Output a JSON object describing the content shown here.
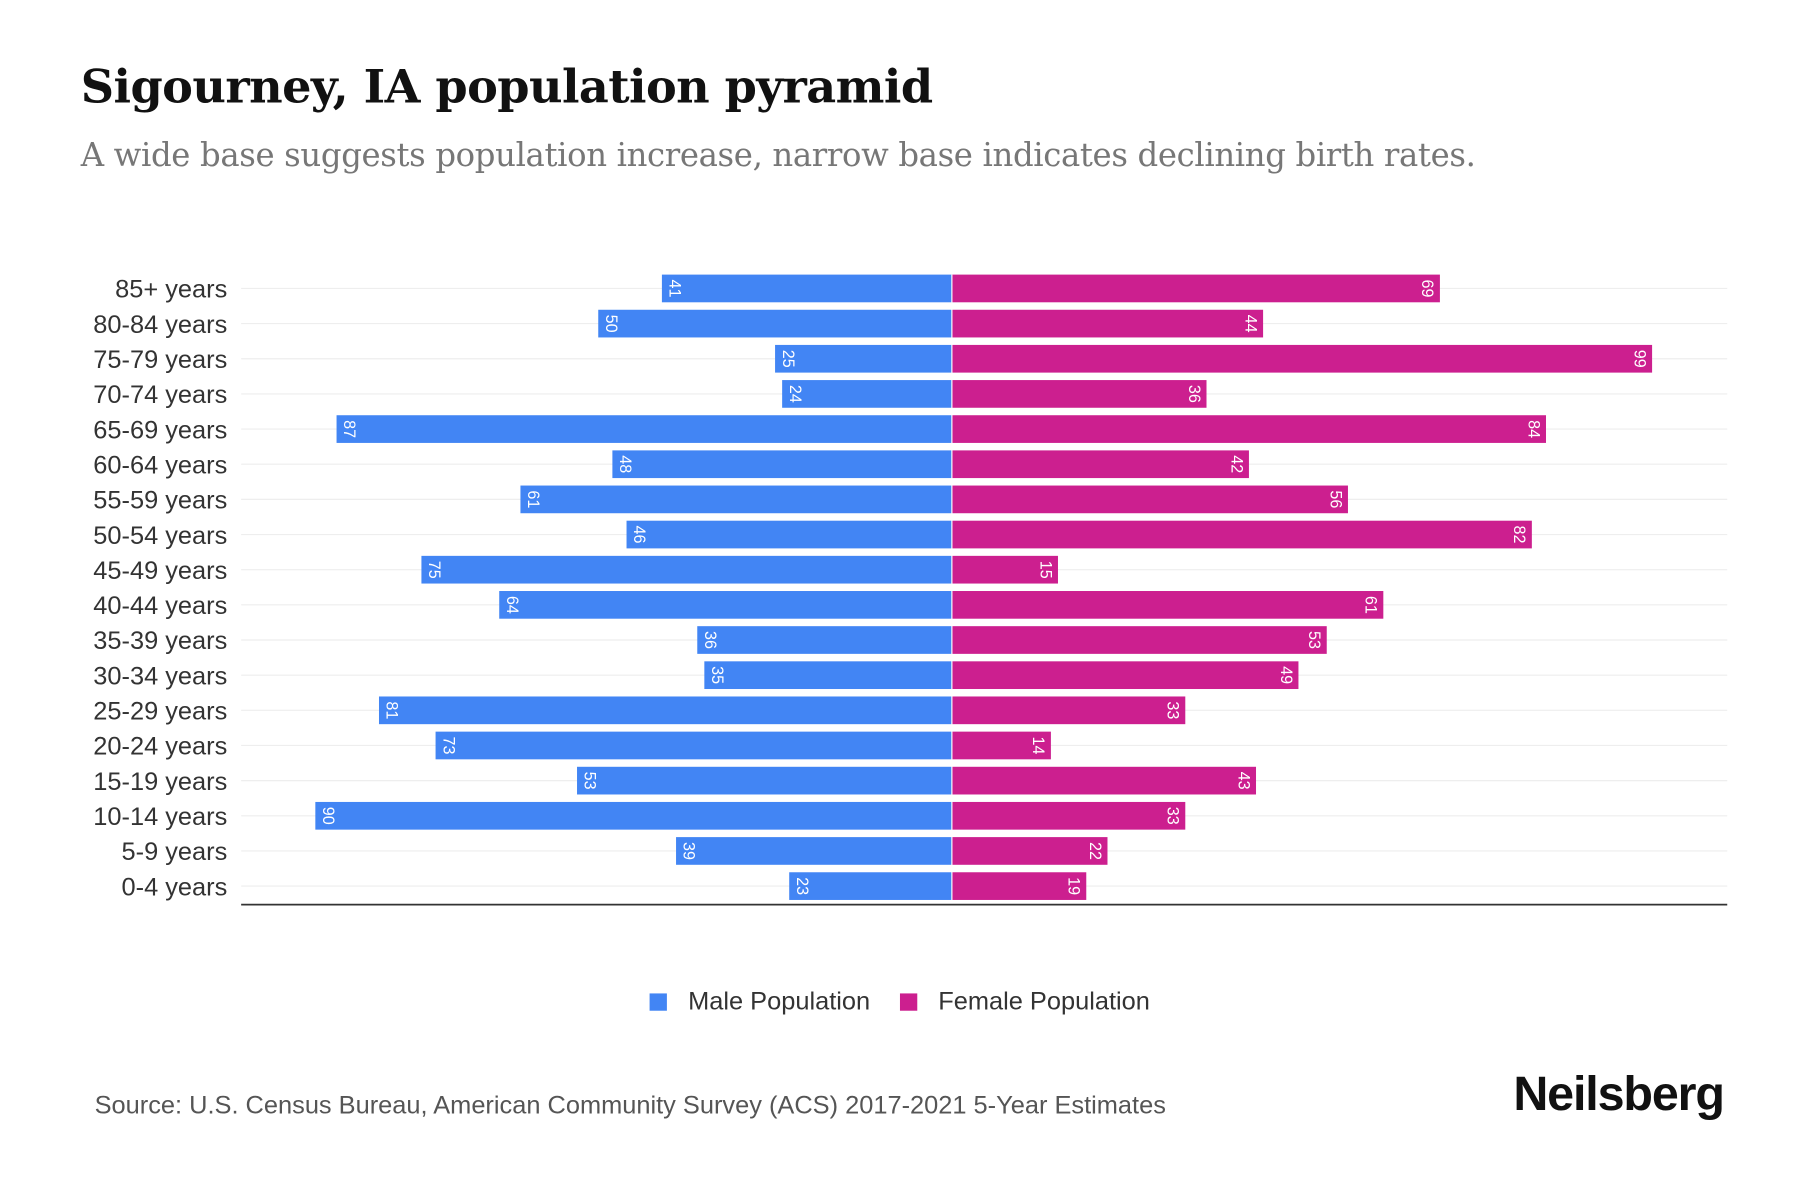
{
  "title": "Sigourney, IA population pyramid",
  "subtitle": "A wide base suggests population increase, narrow base indicates declining birth rates.",
  "source": "Source: U.S. Census Bureau, American Community Survey (ACS) 2017-2021 5-Year Estimates",
  "logo": "Neilsberg",
  "colors": {
    "male": "#4285f4",
    "female": "#cc1f8f"
  },
  "chart_data": {
    "type": "bar",
    "orientation": "horizontal-pyramid",
    "title": "Sigourney, IA population pyramid",
    "categories": [
      "85+ years",
      "80-84 years",
      "75-79 years",
      "70-74 years",
      "65-69 years",
      "60-64 years",
      "55-59 years",
      "50-54 years",
      "45-49 years",
      "40-44 years",
      "35-39 years",
      "30-34 years",
      "25-29 years",
      "20-24 years",
      "15-19 years",
      "10-14 years",
      "5-9 years",
      "0-4 years"
    ],
    "series": [
      {
        "name": "Male Population",
        "values": [
          41,
          50,
          25,
          24,
          87,
          48,
          61,
          46,
          75,
          64,
          36,
          35,
          81,
          73,
          53,
          90,
          39,
          23
        ]
      },
      {
        "name": "Female Population",
        "values": [
          69,
          44,
          99,
          36,
          84,
          42,
          56,
          82,
          15,
          61,
          53,
          49,
          33,
          14,
          43,
          33,
          22,
          19
        ]
      }
    ],
    "xlim": [
      -105,
      105
    ],
    "grid": true,
    "legend": "bottom-center"
  }
}
